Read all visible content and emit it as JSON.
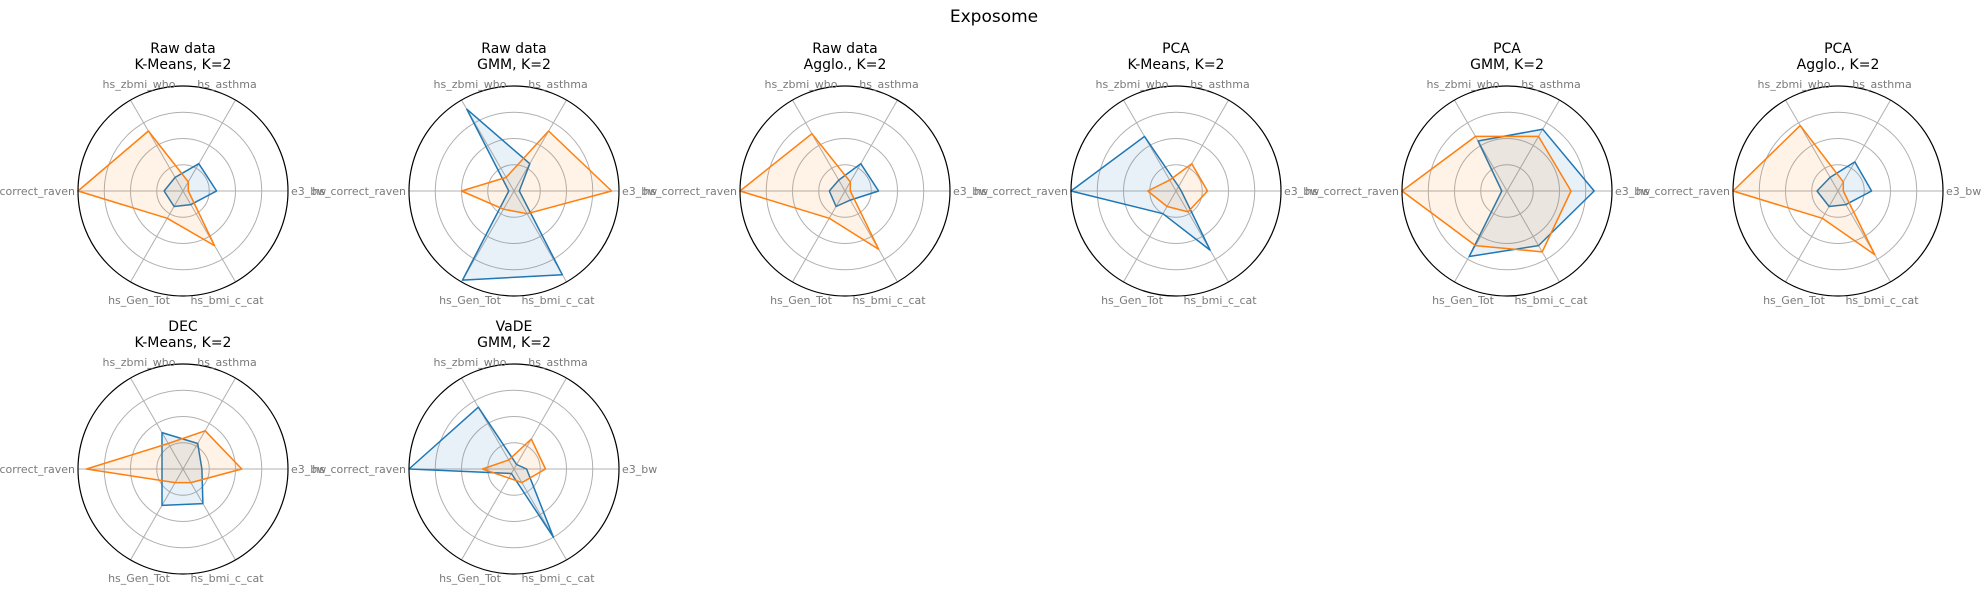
{
  "figure_title": "Exposome",
  "chart_data": [
    {
      "type": "radar",
      "title_lines": [
        "Raw data",
        "K-Means, K=2"
      ],
      "axes": [
        "e3_bw",
        "hs_asthma",
        "hs_zbmi_who",
        "hs_correct_raven",
        "hs_Gen_Tot",
        "hs_bmi_c_cat"
      ],
      "series": [
        {
          "color": "#1f77b4",
          "values": [
            0.32,
            0.3,
            0.15,
            0.18,
            0.17,
            0.15
          ]
        },
        {
          "color": "#ff7f0e",
          "values": [
            0.05,
            0.1,
            0.66,
            1.0,
            0.3,
            0.6
          ]
        }
      ]
    },
    {
      "type": "radar",
      "title_lines": [
        "Raw data",
        "GMM, K=2"
      ],
      "axes": [
        "e3_bw",
        "hs_asthma",
        "hs_zbmi_who",
        "hs_correct_raven",
        "hs_Gen_Tot",
        "hs_bmi_c_cat"
      ],
      "series": [
        {
          "color": "#1f77b4",
          "values": [
            0.05,
            0.3,
            0.9,
            0.05,
            0.98,
            0.92
          ]
        },
        {
          "color": "#ff7f0e",
          "values": [
            0.93,
            0.66,
            0.15,
            0.5,
            0.2,
            0.25
          ]
        }
      ]
    },
    {
      "type": "radar",
      "title_lines": [
        "Raw data",
        "Agglo., K=2"
      ],
      "axes": [
        "e3_bw",
        "hs_asthma",
        "hs_zbmi_who",
        "hs_correct_raven",
        "hs_Gen_Tot",
        "hs_bmi_c_cat"
      ],
      "series": [
        {
          "color": "#1f77b4",
          "values": [
            0.32,
            0.3,
            0.12,
            0.15,
            0.17,
            0.1
          ]
        },
        {
          "color": "#ff7f0e",
          "values": [
            0.05,
            0.1,
            0.63,
            1.0,
            0.3,
            0.64
          ]
        }
      ]
    },
    {
      "type": "radar",
      "title_lines": [
        "PCA",
        "K-Means, K=2"
      ],
      "axes": [
        "e3_bw",
        "hs_asthma",
        "hs_zbmi_who",
        "hs_correct_raven",
        "hs_Gen_Tot",
        "hs_bmi_c_cat"
      ],
      "series": [
        {
          "color": "#1f77b4",
          "values": [
            0.05,
            0.05,
            0.6,
            1.0,
            0.25,
            0.65
          ]
        },
        {
          "color": "#ff7f0e",
          "values": [
            0.3,
            0.3,
            0.12,
            0.27,
            0.17,
            0.23
          ]
        }
      ]
    },
    {
      "type": "radar",
      "title_lines": [
        "PCA",
        "GMM, K=2"
      ],
      "axes": [
        "e3_bw",
        "hs_asthma",
        "hs_zbmi_who",
        "hs_correct_raven",
        "hs_Gen_Tot",
        "hs_bmi_c_cat"
      ],
      "series": [
        {
          "color": "#1f77b4",
          "values": [
            0.83,
            0.68,
            0.55,
            0.05,
            0.72,
            0.6
          ]
        },
        {
          "color": "#ff7f0e",
          "values": [
            0.61,
            0.6,
            0.6,
            1.0,
            0.6,
            0.67
          ]
        }
      ]
    },
    {
      "type": "radar",
      "title_lines": [
        "PCA",
        "Agglo., K=2"
      ],
      "axes": [
        "e3_bw",
        "hs_asthma",
        "hs_zbmi_who",
        "hs_correct_raven",
        "hs_Gen_Tot",
        "hs_bmi_c_cat"
      ],
      "series": [
        {
          "color": "#1f77b4",
          "values": [
            0.32,
            0.32,
            0.15,
            0.2,
            0.17,
            0.15
          ]
        },
        {
          "color": "#ff7f0e",
          "values": [
            0.05,
            0.1,
            0.72,
            1.0,
            0.3,
            0.7
          ]
        }
      ]
    },
    {
      "type": "radar",
      "title_lines": [
        "DEC",
        "K-Means, K=2"
      ],
      "axes": [
        "e3_bw",
        "hs_asthma",
        "hs_zbmi_who",
        "hs_correct_raven",
        "hs_Gen_Tot",
        "hs_bmi_c_cat"
      ],
      "series": [
        {
          "color": "#1f77b4",
          "values": [
            0.18,
            0.28,
            0.4,
            0.2,
            0.4,
            0.38
          ]
        },
        {
          "color": "#ff7f0e",
          "values": [
            0.56,
            0.42,
            0.28,
            0.92,
            0.15,
            0.15
          ]
        }
      ]
    },
    {
      "type": "radar",
      "title_lines": [
        "VaDE",
        "GMM, K=2"
      ],
      "axes": [
        "e3_bw",
        "hs_asthma",
        "hs_zbmi_who",
        "hs_correct_raven",
        "hs_Gen_Tot",
        "hs_bmi_c_cat"
      ],
      "series": [
        {
          "color": "#1f77b4",
          "values": [
            0.12,
            0.05,
            0.68,
            1.0,
            0.05,
            0.75
          ]
        },
        {
          "color": "#ff7f0e",
          "values": [
            0.3,
            0.33,
            0.1,
            0.3,
            0.1,
            0.15
          ]
        }
      ]
    }
  ]
}
